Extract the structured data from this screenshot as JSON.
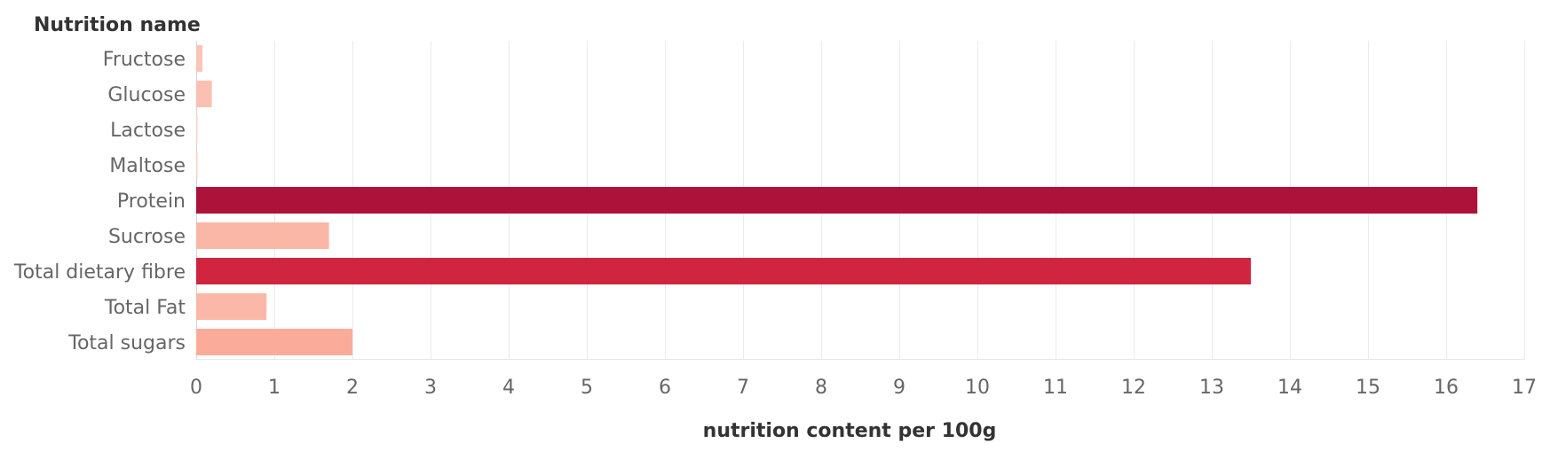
{
  "chart_data": {
    "type": "bar",
    "orientation": "horizontal",
    "row_header": "Nutrition name",
    "xlabel": "nutrition content per 100g",
    "categories": [
      "Fructose",
      "Glucose",
      "Lactose",
      "Maltose",
      "Protein",
      "Sucrose",
      "Total dietary fibre",
      "Total Fat",
      "Total sugars"
    ],
    "values": [
      0.08,
      0.2,
      0.0,
      0.0,
      16.4,
      1.7,
      13.5,
      0.9,
      2.0
    ],
    "colors": [
      "#fbc4b5",
      "#fbc0b2",
      "#fcd2c6",
      "#fcd2c6",
      "#ad123a",
      "#fbb7a6",
      "#d0253e",
      "#fbb8a8",
      "#fbab99"
    ],
    "xlim": [
      0,
      17
    ],
    "xticks": [
      "0",
      "1",
      "2",
      "3",
      "4",
      "5",
      "6",
      "7",
      "8",
      "9",
      "10",
      "11",
      "12",
      "13",
      "14",
      "15",
      "16",
      "17"
    ],
    "grid": true,
    "legend": "none"
  }
}
